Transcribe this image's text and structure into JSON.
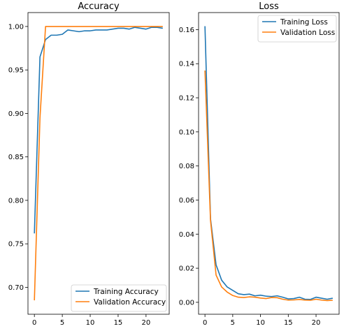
{
  "chart_data": [
    {
      "type": "line",
      "title": "Accuracy",
      "xlabel": "",
      "ylabel": "",
      "xlim": [
        -1.15,
        24.15
      ],
      "ylim": [
        0.669,
        1.016
      ],
      "xticks": [
        0,
        5,
        10,
        15,
        20
      ],
      "yticks": [
        0.7,
        0.75,
        0.8,
        0.85,
        0.9,
        0.95,
        1.0
      ],
      "xtick_labels": [
        "0",
        "5",
        "10",
        "15",
        "20"
      ],
      "ytick_labels": [
        "0.70",
        "0.75",
        "0.80",
        "0.85",
        "0.90",
        "0.95",
        "1.00"
      ],
      "legend_position": "lower-right",
      "grid": false,
      "x": [
        0,
        1,
        2,
        3,
        4,
        5,
        6,
        7,
        8,
        9,
        10,
        11,
        12,
        13,
        14,
        15,
        16,
        17,
        18,
        19,
        20,
        21,
        22,
        23
      ],
      "series": [
        {
          "name": "Training Accuracy",
          "color": "#1f77b4",
          "values": [
            0.762,
            0.965,
            0.985,
            0.99,
            0.99,
            0.991,
            0.996,
            0.995,
            0.994,
            0.995,
            0.995,
            0.996,
            0.996,
            0.996,
            0.997,
            0.998,
            0.998,
            0.997,
            0.999,
            0.998,
            0.997,
            0.999,
            0.999,
            0.998
          ]
        },
        {
          "name": "Validation Accuracy",
          "color": "#ff7f0e",
          "values": [
            0.685,
            0.895,
            1.0,
            1.0,
            1.0,
            1.0,
            1.0,
            1.0,
            1.0,
            1.0,
            1.0,
            1.0,
            1.0,
            1.0,
            1.0,
            1.0,
            1.0,
            1.0,
            1.0,
            1.0,
            1.0,
            1.0,
            1.0,
            1.0
          ]
        }
      ]
    },
    {
      "type": "line",
      "title": "Loss",
      "xlabel": "",
      "ylabel": "",
      "xlim": [
        -1.15,
        24.15
      ],
      "ylim": [
        -0.007,
        0.17
      ],
      "xticks": [
        0,
        5,
        10,
        15,
        20
      ],
      "yticks": [
        0.0,
        0.02,
        0.04,
        0.06,
        0.08,
        0.1,
        0.12,
        0.14,
        0.16
      ],
      "xtick_labels": [
        "0",
        "5",
        "10",
        "15",
        "20"
      ],
      "ytick_labels": [
        "0.00",
        "0.02",
        "0.04",
        "0.06",
        "0.08",
        "0.10",
        "0.12",
        "0.14",
        "0.16"
      ],
      "legend_position": "upper-right",
      "grid": false,
      "x": [
        0,
        1,
        2,
        3,
        4,
        5,
        6,
        7,
        8,
        9,
        10,
        11,
        12,
        13,
        14,
        15,
        16,
        17,
        18,
        19,
        20,
        21,
        22,
        23
      ],
      "series": [
        {
          "name": "Training Loss",
          "color": "#1f77b4",
          "values": [
            0.162,
            0.049,
            0.022,
            0.013,
            0.009,
            0.007,
            0.005,
            0.0045,
            0.0048,
            0.0038,
            0.0042,
            0.0036,
            0.0034,
            0.0038,
            0.003,
            0.002,
            0.0022,
            0.003,
            0.0018,
            0.0017,
            0.003,
            0.0024,
            0.0018,
            0.0024
          ]
        },
        {
          "name": "Validation Loss",
          "color": "#ff7f0e",
          "values": [
            0.136,
            0.048,
            0.016,
            0.009,
            0.006,
            0.004,
            0.003,
            0.0028,
            0.0032,
            0.003,
            0.0025,
            0.0022,
            0.0028,
            0.0027,
            0.0018,
            0.0013,
            0.0014,
            0.0017,
            0.0013,
            0.0012,
            0.0018,
            0.0013,
            0.001,
            0.0012
          ]
        }
      ]
    }
  ]
}
